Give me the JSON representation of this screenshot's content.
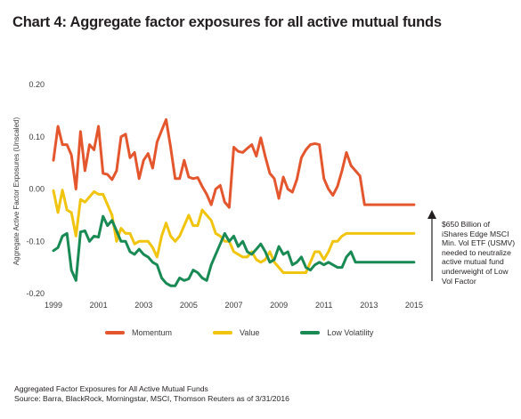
{
  "title": "Chart 4: Aggregate factor exposures for all active mutual funds",
  "annotation": "$650 Billion of iShares Edge MSCI Min. Vol ETF (USMV) needed to neutralize active mutual fund underweight of Low Vol Factor",
  "footer": {
    "line1": "Aggregated Factor Exposures for All Active Mutual Funds",
    "line2": "Source: Barra, BlackRock, Morningstar, MSCI, Thomson Reuters as of 3/31/2016"
  },
  "chart_data": {
    "type": "line",
    "ylabel": "Aggregate Active Factor Exposures (Unscaled)",
    "xlabel": "",
    "ylim": [
      -0.2,
      0.2
    ],
    "xlim": [
      1999,
      2015.2
    ],
    "yticks": [
      "0.20",
      "0.10",
      "0.00",
      "-0.10",
      "-0.20"
    ],
    "ytick_values": [
      0.2,
      0.1,
      0.0,
      -0.1,
      -0.2
    ],
    "xticks": [
      "1999",
      "2001",
      "2003",
      "2005",
      "2007",
      "2009",
      "2011",
      "2013",
      "2015"
    ],
    "grid": false,
    "legend_position": "bottom",
    "series": [
      {
        "name": "Momentum",
        "color": "#e4572e",
        "x": [
          1999.0,
          1999.2,
          1999.4,
          1999.6,
          1999.8,
          2000.0,
          2000.2,
          2000.4,
          2000.6,
          2000.8,
          2001.0,
          2001.2,
          2001.4,
          2001.6,
          2001.8,
          2002.0,
          2002.2,
          2002.4,
          2002.6,
          2002.8,
          2003.0,
          2003.2,
          2003.4,
          2003.6,
          2003.8,
          2004.0,
          2004.2,
          2004.4,
          2004.6,
          2004.8,
          2005.0,
          2005.2,
          2005.4,
          2005.6,
          2005.8,
          2006.0,
          2006.2,
          2006.4,
          2006.6,
          2006.8,
          2007.0,
          2007.2,
          2007.4,
          2007.6,
          2007.8,
          2008.0,
          2008.2,
          2008.4,
          2008.6,
          2008.8,
          2009.0,
          2009.2,
          2009.4,
          2009.6,
          2009.8,
          2010.0,
          2010.2,
          2010.4,
          2010.6,
          2010.8,
          2011.0,
          2011.2,
          2011.4,
          2011.6,
          2011.8,
          2012.0,
          2012.2,
          2012.4,
          2012.6,
          2012.8,
          2013.0,
          2013.2,
          2013.4,
          2013.6,
          2013.8,
          2014.0,
          2014.2,
          2014.4,
          2014.6,
          2014.8,
          2015.0
        ],
        "values": [
          0.055,
          0.12,
          0.085,
          0.085,
          0.065,
          0.0,
          0.11,
          0.035,
          0.085,
          0.075,
          0.12,
          0.03,
          0.028,
          0.018,
          0.035,
          0.1,
          0.105,
          0.06,
          0.07,
          0.02,
          0.055,
          0.068,
          0.04,
          0.09,
          0.112,
          0.133,
          0.08,
          0.02,
          0.02,
          0.055,
          0.023,
          0.02,
          0.022,
          0.005,
          -0.01,
          -0.03,
          0.0,
          0.007,
          -0.025,
          -0.035,
          0.08,
          0.072,
          0.07,
          0.078,
          0.085,
          0.063,
          0.098,
          0.062,
          0.03,
          0.02,
          -0.018,
          0.023,
          0.0,
          -0.006,
          0.018,
          0.06,
          0.075,
          0.085,
          0.087,
          0.085,
          0.02,
          0.0,
          -0.012,
          0.005,
          0.035,
          0.07,
          0.045,
          0.035,
          0.025,
          -0.03,
          -0.03,
          -0.03,
          -0.03,
          -0.03,
          -0.03,
          -0.03,
          -0.03,
          -0.03,
          -0.03,
          -0.03,
          -0.03
        ]
      },
      {
        "name": "Value",
        "color": "#f1c40f",
        "x": [
          1999.0,
          1999.2,
          1999.4,
          1999.6,
          1999.8,
          2000.0,
          2000.2,
          2000.4,
          2000.6,
          2000.8,
          2001.0,
          2001.2,
          2001.4,
          2001.6,
          2001.8,
          2002.0,
          2002.2,
          2002.4,
          2002.6,
          2002.8,
          2003.0,
          2003.2,
          2003.4,
          2003.6,
          2003.8,
          2004.0,
          2004.2,
          2004.4,
          2004.6,
          2004.8,
          2005.0,
          2005.2,
          2005.4,
          2005.6,
          2005.8,
          2006.0,
          2006.2,
          2006.4,
          2006.6,
          2006.8,
          2007.0,
          2007.2,
          2007.4,
          2007.6,
          2007.8,
          2008.0,
          2008.2,
          2008.4,
          2008.6,
          2008.8,
          2009.0,
          2009.2,
          2009.4,
          2009.6,
          2009.8,
          2010.0,
          2010.2,
          2010.4,
          2010.6,
          2010.8,
          2011.0,
          2011.2,
          2011.4,
          2011.6,
          2011.8,
          2012.0,
          2012.2,
          2012.4,
          2012.6,
          2012.8,
          2013.0,
          2013.2,
          2013.4,
          2013.6,
          2013.8,
          2014.0,
          2014.2,
          2014.4,
          2014.6,
          2014.8,
          2015.0
        ],
        "values": [
          -0.003,
          -0.045,
          -0.002,
          -0.04,
          -0.045,
          -0.09,
          -0.02,
          -0.025,
          -0.015,
          -0.005,
          -0.01,
          -0.01,
          -0.03,
          -0.05,
          -0.1,
          -0.075,
          -0.085,
          -0.085,
          -0.105,
          -0.1,
          -0.1,
          -0.1,
          -0.112,
          -0.13,
          -0.09,
          -0.065,
          -0.09,
          -0.1,
          -0.09,
          -0.07,
          -0.05,
          -0.07,
          -0.07,
          -0.04,
          -0.05,
          -0.06,
          -0.085,
          -0.09,
          -0.1,
          -0.1,
          -0.12,
          -0.125,
          -0.13,
          -0.13,
          -0.12,
          -0.135,
          -0.14,
          -0.135,
          -0.12,
          -0.14,
          -0.15,
          -0.16,
          -0.16,
          -0.16,
          -0.16,
          -0.16,
          -0.16,
          -0.14,
          -0.12,
          -0.12,
          -0.135,
          -0.12,
          -0.1,
          -0.1,
          -0.09,
          -0.085,
          -0.085,
          -0.085,
          -0.085,
          -0.085,
          -0.085,
          -0.085,
          -0.085,
          -0.085,
          -0.085,
          -0.085,
          -0.085,
          -0.085,
          -0.085,
          -0.085,
          -0.085
        ]
      },
      {
        "name": "Low Volatility",
        "color": "#1a8a55",
        "x": [
          1999.0,
          1999.2,
          1999.4,
          1999.6,
          1999.8,
          2000.0,
          2000.2,
          2000.4,
          2000.6,
          2000.8,
          2001.0,
          2001.2,
          2001.4,
          2001.6,
          2001.8,
          2002.0,
          2002.2,
          2002.4,
          2002.6,
          2002.8,
          2003.0,
          2003.2,
          2003.4,
          2003.6,
          2003.8,
          2004.0,
          2004.2,
          2004.4,
          2004.6,
          2004.8,
          2005.0,
          2005.2,
          2005.4,
          2005.6,
          2005.8,
          2006.0,
          2006.2,
          2006.4,
          2006.6,
          2006.8,
          2007.0,
          2007.2,
          2007.4,
          2007.6,
          2007.8,
          2008.0,
          2008.2,
          2008.4,
          2008.6,
          2008.8,
          2009.0,
          2009.2,
          2009.4,
          2009.6,
          2009.8,
          2010.0,
          2010.2,
          2010.4,
          2010.6,
          2010.8,
          2011.0,
          2011.2,
          2011.4,
          2011.6,
          2011.8,
          2012.0,
          2012.2,
          2012.4,
          2012.6,
          2012.8,
          2013.0,
          2013.2,
          2013.4,
          2013.6,
          2013.8,
          2014.0,
          2014.2,
          2014.4,
          2014.6,
          2014.8,
          2015.0
        ],
        "values": [
          -0.118,
          -0.112,
          -0.09,
          -0.085,
          -0.155,
          -0.175,
          -0.082,
          -0.08,
          -0.1,
          -0.09,
          -0.092,
          -0.052,
          -0.07,
          -0.06,
          -0.08,
          -0.1,
          -0.1,
          -0.12,
          -0.125,
          -0.115,
          -0.125,
          -0.13,
          -0.14,
          -0.145,
          -0.17,
          -0.18,
          -0.185,
          -0.185,
          -0.17,
          -0.175,
          -0.172,
          -0.155,
          -0.16,
          -0.17,
          -0.175,
          -0.145,
          -0.125,
          -0.105,
          -0.085,
          -0.1,
          -0.09,
          -0.11,
          -0.1,
          -0.12,
          -0.125,
          -0.115,
          -0.105,
          -0.12,
          -0.14,
          -0.135,
          -0.11,
          -0.125,
          -0.12,
          -0.145,
          -0.14,
          -0.13,
          -0.15,
          -0.155,
          -0.145,
          -0.14,
          -0.145,
          -0.14,
          -0.145,
          -0.15,
          -0.15,
          -0.13,
          -0.12,
          -0.14,
          -0.14,
          -0.14,
          -0.14,
          -0.14,
          -0.14,
          -0.14,
          -0.14,
          -0.14,
          -0.14,
          -0.14,
          -0.14,
          -0.14,
          -0.14
        ]
      }
    ]
  }
}
